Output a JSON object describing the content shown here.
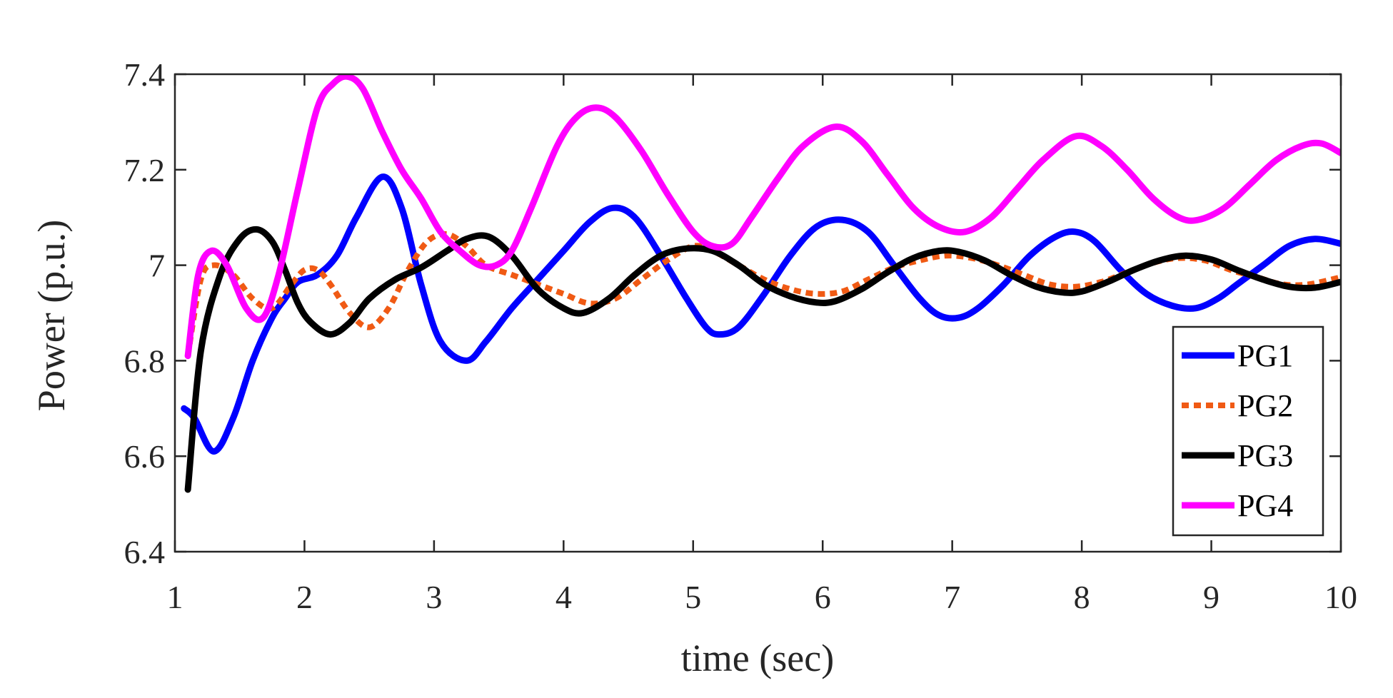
{
  "chart_data": {
    "type": "line",
    "title": "",
    "xlabel": "time (sec)",
    "ylabel": "Power (p.u.)",
    "xlim": [
      1,
      10
    ],
    "ylim": [
      6.4,
      7.4
    ],
    "xticks": [
      1,
      2,
      3,
      4,
      5,
      6,
      7,
      8,
      9,
      10
    ],
    "xtick_labels": [
      "1",
      "2",
      "3",
      "4",
      "5",
      "6",
      "7",
      "8",
      "9",
      "10"
    ],
    "yticks": [
      6.4,
      6.6,
      6.8,
      7,
      7.2,
      7.4
    ],
    "ytick_labels": [
      "6.4",
      "6.6",
      "6.8",
      "7",
      "7.2",
      "7.4"
    ],
    "grid": false,
    "legend_position": "bottom-right",
    "series": [
      {
        "name": "PG1",
        "color": "#0000FF",
        "style": "solid",
        "x": [
          1.07,
          1.15,
          1.3,
          1.45,
          1.6,
          1.75,
          1.85,
          1.95,
          2.1,
          2.25,
          2.4,
          2.6,
          2.75,
          2.9,
          3.05,
          3.25,
          3.4,
          3.6,
          3.8,
          4.0,
          4.2,
          4.38,
          4.55,
          4.75,
          4.95,
          5.1,
          5.2,
          5.35,
          5.55,
          5.75,
          5.95,
          6.15,
          6.35,
          6.55,
          6.75,
          6.9,
          7.05,
          7.2,
          7.4,
          7.6,
          7.8,
          7.95,
          8.1,
          8.3,
          8.5,
          8.7,
          8.88,
          9.05,
          9.2,
          9.4,
          9.6,
          9.8,
          10.0
        ],
        "y": [
          6.7,
          6.68,
          6.61,
          6.68,
          6.8,
          6.89,
          6.93,
          6.965,
          6.98,
          7.02,
          7.1,
          7.185,
          7.12,
          6.96,
          6.84,
          6.8,
          6.84,
          6.91,
          6.97,
          7.03,
          7.09,
          7.12,
          7.1,
          7.02,
          6.93,
          6.87,
          6.855,
          6.87,
          6.94,
          7.02,
          7.08,
          7.095,
          7.07,
          7.0,
          6.93,
          6.895,
          6.89,
          6.91,
          6.96,
          7.02,
          7.06,
          7.07,
          7.05,
          6.99,
          6.94,
          6.915,
          6.91,
          6.93,
          6.96,
          7.0,
          7.04,
          7.055,
          7.045
        ]
      },
      {
        "name": "PG2",
        "color": "#F05A14",
        "style": "dashed",
        "x": [
          1.1,
          1.2,
          1.3,
          1.45,
          1.6,
          1.75,
          1.9,
          2.0,
          2.1,
          2.2,
          2.35,
          2.5,
          2.65,
          2.8,
          2.95,
          3.1,
          3.25,
          3.4,
          3.6,
          3.8,
          4.0,
          4.2,
          4.4,
          4.6,
          4.8,
          5.0,
          5.15,
          5.35,
          5.55,
          5.75,
          5.95,
          6.15,
          6.35,
          6.55,
          6.75,
          6.95,
          7.15,
          7.35,
          7.55,
          7.75,
          7.95,
          8.15,
          8.35,
          8.55,
          8.75,
          8.95,
          9.15,
          9.35,
          9.55,
          9.75,
          10.0
        ],
        "y": [
          6.81,
          6.97,
          7.0,
          6.98,
          6.93,
          6.91,
          6.96,
          6.99,
          6.99,
          6.96,
          6.9,
          6.87,
          6.91,
          6.99,
          7.05,
          7.065,
          7.04,
          7.0,
          6.98,
          6.96,
          6.94,
          6.92,
          6.93,
          6.97,
          7.01,
          7.04,
          7.03,
          7.0,
          6.97,
          6.95,
          6.94,
          6.945,
          6.97,
          6.995,
          7.01,
          7.02,
          7.015,
          7.0,
          6.98,
          6.96,
          6.955,
          6.965,
          6.985,
          7.005,
          7.015,
          7.01,
          6.99,
          6.975,
          6.96,
          6.96,
          6.975
        ]
      },
      {
        "name": "PG3",
        "color": "#000000",
        "style": "solid",
        "x": [
          1.1,
          1.2,
          1.35,
          1.5,
          1.63,
          1.75,
          1.85,
          1.95,
          2.05,
          2.2,
          2.35,
          2.5,
          2.7,
          2.9,
          3.1,
          3.25,
          3.42,
          3.6,
          3.8,
          4.0,
          4.15,
          4.35,
          4.55,
          4.75,
          4.95,
          5.15,
          5.35,
          5.55,
          5.75,
          5.95,
          6.1,
          6.3,
          6.5,
          6.7,
          6.9,
          7.05,
          7.25,
          7.45,
          7.65,
          7.85,
          8.0,
          8.2,
          8.4,
          8.6,
          8.8,
          9.0,
          9.2,
          9.4,
          9.6,
          9.8,
          10.0
        ],
        "y": [
          6.53,
          6.82,
          6.98,
          7.055,
          7.075,
          7.05,
          6.99,
          6.92,
          6.88,
          6.855,
          6.88,
          6.93,
          6.97,
          6.995,
          7.03,
          7.055,
          7.06,
          7.02,
          6.95,
          6.91,
          6.9,
          6.93,
          6.98,
          7.02,
          7.035,
          7.03,
          7.0,
          6.96,
          6.935,
          6.922,
          6.925,
          6.95,
          6.985,
          7.015,
          7.03,
          7.028,
          7.01,
          6.98,
          6.955,
          6.943,
          6.945,
          6.965,
          6.99,
          7.01,
          7.02,
          7.012,
          6.99,
          6.97,
          6.955,
          6.953,
          6.965
        ]
      },
      {
        "name": "PG4",
        "color": "#FF00FF",
        "style": "solid",
        "x": [
          1.1,
          1.18,
          1.28,
          1.4,
          1.55,
          1.68,
          1.8,
          1.95,
          2.1,
          2.22,
          2.33,
          2.45,
          2.6,
          2.75,
          2.9,
          3.05,
          3.2,
          3.35,
          3.48,
          3.6,
          3.75,
          3.95,
          4.1,
          4.25,
          4.4,
          4.6,
          4.8,
          5.0,
          5.15,
          5.3,
          5.45,
          5.65,
          5.85,
          6.1,
          6.3,
          6.5,
          6.7,
          6.9,
          7.1,
          7.3,
          7.5,
          7.7,
          7.95,
          8.15,
          8.35,
          8.55,
          8.75,
          8.9,
          9.1,
          9.3,
          9.5,
          9.7,
          9.85,
          10.0
        ],
        "y": [
          6.81,
          6.98,
          7.03,
          7.0,
          6.91,
          6.89,
          6.98,
          7.16,
          7.33,
          7.38,
          7.395,
          7.37,
          7.28,
          7.2,
          7.14,
          7.07,
          7.03,
          7.0,
          7.0,
          7.03,
          7.12,
          7.25,
          7.31,
          7.33,
          7.31,
          7.24,
          7.15,
          7.07,
          7.04,
          7.045,
          7.1,
          7.18,
          7.25,
          7.29,
          7.26,
          7.19,
          7.12,
          7.08,
          7.07,
          7.1,
          7.16,
          7.22,
          7.27,
          7.25,
          7.2,
          7.14,
          7.1,
          7.095,
          7.12,
          7.17,
          7.22,
          7.25,
          7.255,
          7.235
        ]
      }
    ]
  }
}
